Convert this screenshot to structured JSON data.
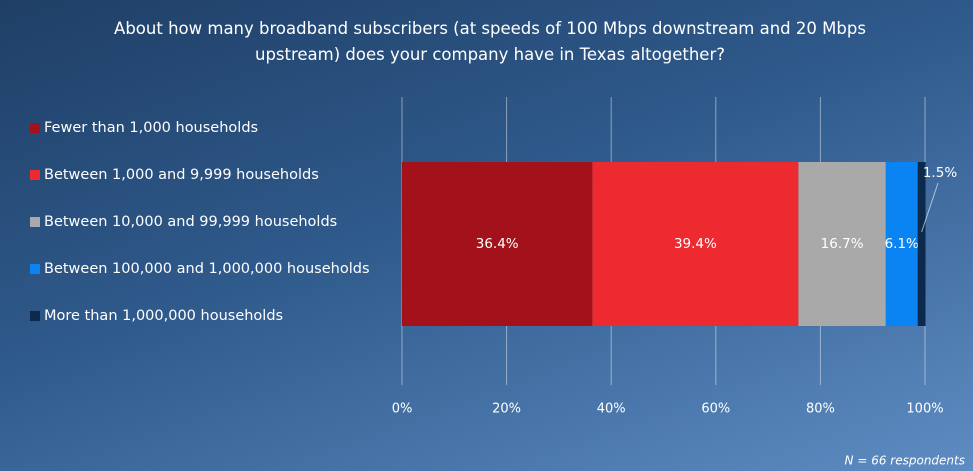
{
  "chart_data": {
    "type": "stacked_bar_horizontal",
    "title": "About how many broadband subscribers (at speeds of 100 Mbps downstream and 20 Mbps upstream) does your company have in Texas altogether?",
    "series": [
      {
        "name": "Fewer than 1,000 households",
        "color": "#a3111b",
        "values": [
          36.4
        ],
        "value_labels": [
          "36.4%"
        ]
      },
      {
        "name": "Between 1,000 and 9,999 households",
        "color": "#ec2a30",
        "values": [
          39.4
        ],
        "value_labels": [
          "39.4%"
        ]
      },
      {
        "name": "Between 10,000 and 99,999 households",
        "color": "#a9a9a9",
        "values": [
          16.7
        ],
        "value_labels": [
          "16.7%"
        ]
      },
      {
        "name": "Between 100,000 and 1,000,000 households",
        "color": "#0a84f2",
        "values": [
          6.1
        ],
        "value_labels": [
          "6.1%"
        ]
      },
      {
        "name": "More than 1,000,000 households",
        "color": "#0d2a4d",
        "values": [
          1.5
        ],
        "value_labels": [
          "1.5%"
        ]
      }
    ],
    "xlim": [
      0,
      100
    ],
    "xticks": [
      {
        "value": 0,
        "label": "0%"
      },
      {
        "value": 20,
        "label": "20%"
      },
      {
        "value": 40,
        "label": "40%"
      },
      {
        "value": 60,
        "label": "60%"
      },
      {
        "value": 80,
        "label": "80%"
      },
      {
        "value": 100,
        "label": "100%"
      }
    ],
    "grid": true,
    "legend": "left",
    "annotation": "N = 66 respondents"
  }
}
